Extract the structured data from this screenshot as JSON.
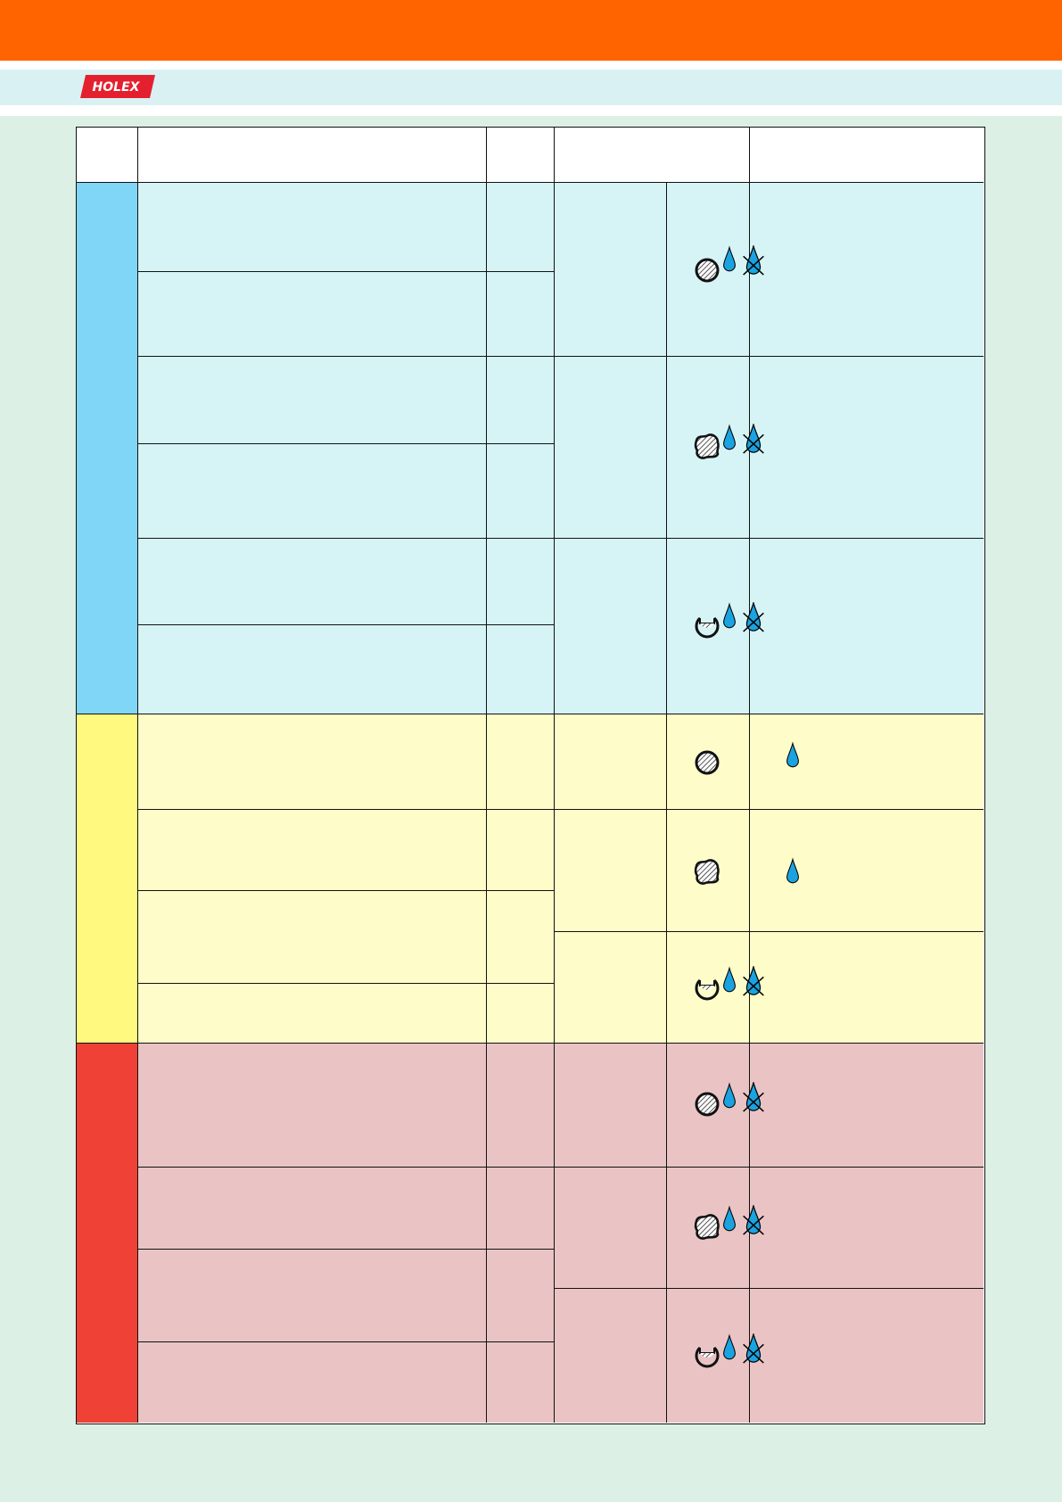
{
  "brand": {
    "logo_text": "HOLEX"
  },
  "colors": {
    "top_bar": "#ff6400",
    "brand_strip": "#d9f1f2",
    "page_bg": "#dcf0e6",
    "logo_red": "#e4202e",
    "group_blue": "#80d6f7",
    "group_blue_bg": "#d6f4f6",
    "group_yellow": "#fff980",
    "group_yellow_bg": "#fefdc9",
    "group_red": "#ef4135",
    "group_red_bg": "#eac4c5",
    "drop_blue": "#1aa3e0"
  },
  "table": {
    "groups": [
      {
        "name": "blue",
        "sections": [
          {
            "shape": "round-bar-icon",
            "coolant": "wet-and-dry"
          },
          {
            "shape": "irregular-profile-icon",
            "coolant": "wet-and-dry"
          },
          {
            "shape": "tube-profile-icon",
            "coolant": "wet-and-dry"
          }
        ]
      },
      {
        "name": "yellow",
        "sections": [
          {
            "shape": "round-bar-icon",
            "coolant": "wet-only"
          },
          {
            "shape": "irregular-profile-icon",
            "coolant": "wet-only"
          },
          {
            "shape": "tube-profile-icon",
            "coolant": "wet-and-dry"
          }
        ]
      },
      {
        "name": "red",
        "sections": [
          {
            "shape": "round-bar-icon",
            "coolant": "wet-and-dry"
          },
          {
            "shape": "irregular-profile-icon",
            "coolant": "wet-and-dry"
          },
          {
            "shape": "tube-profile-icon",
            "coolant": "wet-and-dry"
          }
        ]
      }
    ]
  }
}
